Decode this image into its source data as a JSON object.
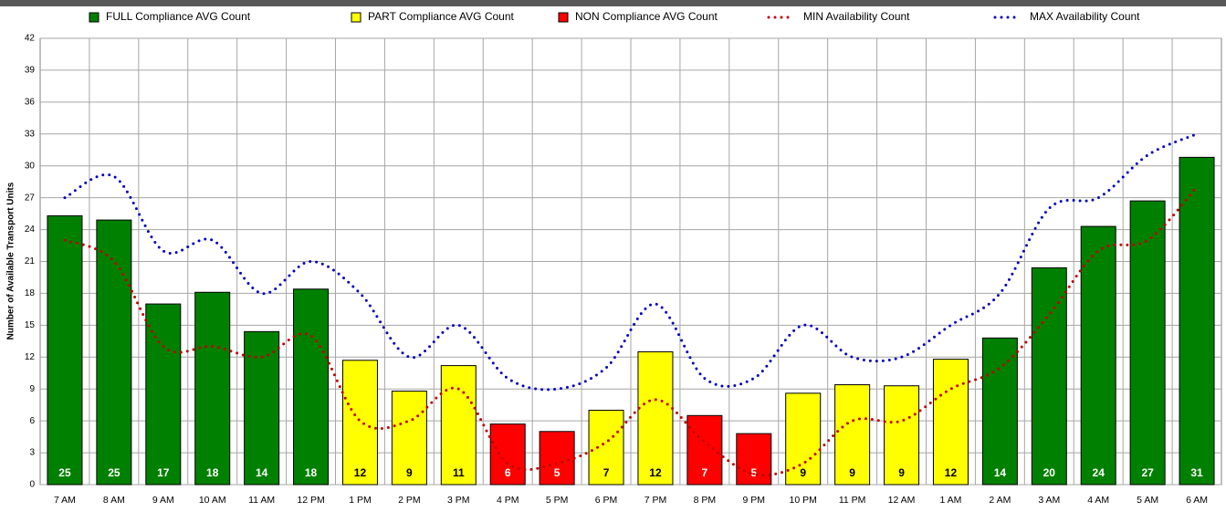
{
  "chart_data": {
    "type": "bar",
    "y_label": "Number of Available Transport Units",
    "categories": [
      "7 AM",
      "8 AM",
      "9 AM",
      "10 AM",
      "11 AM",
      "12 PM",
      "1 PM",
      "2 PM",
      "3 PM",
      "4 PM",
      "5 PM",
      "6 PM",
      "7 PM",
      "8 PM",
      "9 PM",
      "10 PM",
      "11 PM",
      "12 AM",
      "1 AM",
      "2 AM",
      "3 AM",
      "4 AM",
      "5 AM",
      "6 AM"
    ],
    "series": [
      {
        "name": "FULL Compliance AVG Count",
        "type": "bar",
        "color": "#008000",
        "values": [
          25.3,
          24.9,
          17.0,
          18.1,
          14.4,
          18.4,
          null,
          null,
          null,
          null,
          null,
          null,
          null,
          null,
          null,
          null,
          null,
          null,
          null,
          13.8,
          20.4,
          24.3,
          26.7,
          30.8
        ],
        "value_labels": [
          "25",
          "25",
          "17",
          "18",
          "14",
          "18",
          null,
          null,
          null,
          null,
          null,
          null,
          null,
          null,
          null,
          null,
          null,
          null,
          null,
          "14",
          "20",
          "24",
          "27",
          "31"
        ]
      },
      {
        "name": "PART Compliance AVG Count",
        "type": "bar",
        "color": "#ffff00",
        "values": [
          null,
          null,
          null,
          null,
          null,
          null,
          11.7,
          8.8,
          11.2,
          null,
          null,
          7.0,
          12.5,
          null,
          null,
          8.6,
          9.4,
          9.3,
          11.8,
          null,
          null,
          null,
          null,
          null
        ],
        "value_labels": [
          null,
          null,
          null,
          null,
          null,
          null,
          "12",
          "9",
          "11",
          null,
          null,
          "7",
          "12",
          null,
          null,
          "9",
          "9",
          "9",
          "12",
          null,
          null,
          null,
          null,
          null
        ]
      },
      {
        "name": "NON Compliance AVG Count",
        "type": "bar",
        "color": "#ff0000",
        "values": [
          null,
          null,
          null,
          null,
          null,
          null,
          null,
          null,
          null,
          5.7,
          5.0,
          null,
          null,
          6.5,
          4.8,
          null,
          null,
          null,
          null,
          null,
          null,
          null,
          null,
          null
        ],
        "value_labels": [
          null,
          null,
          null,
          null,
          null,
          null,
          null,
          null,
          null,
          "6",
          "5",
          null,
          null,
          "7",
          "5",
          null,
          null,
          null,
          null,
          null,
          null,
          null,
          null,
          null
        ]
      },
      {
        "name": "MIN Availability Count",
        "type": "line",
        "color": "#c00000",
        "values": [
          23,
          21,
          13,
          13,
          12,
          14,
          6,
          6,
          9,
          2,
          2,
          4,
          8,
          4,
          1,
          2,
          6,
          6,
          9,
          11,
          16,
          22,
          23,
          28
        ]
      },
      {
        "name": "MAX Availability Count",
        "type": "line",
        "color": "#0000c0",
        "values": [
          27,
          29,
          22,
          23,
          18,
          21,
          18,
          12,
          15,
          10,
          9,
          11,
          17,
          10,
          10,
          15,
          12,
          12,
          15,
          18,
          26,
          27,
          31,
          33
        ]
      }
    ],
    "ylim": [
      0,
      42
    ],
    "yticks": [
      0,
      3,
      6,
      9,
      12,
      15,
      18,
      21,
      24,
      27,
      30,
      33,
      36,
      39,
      42
    ],
    "grid": true
  }
}
